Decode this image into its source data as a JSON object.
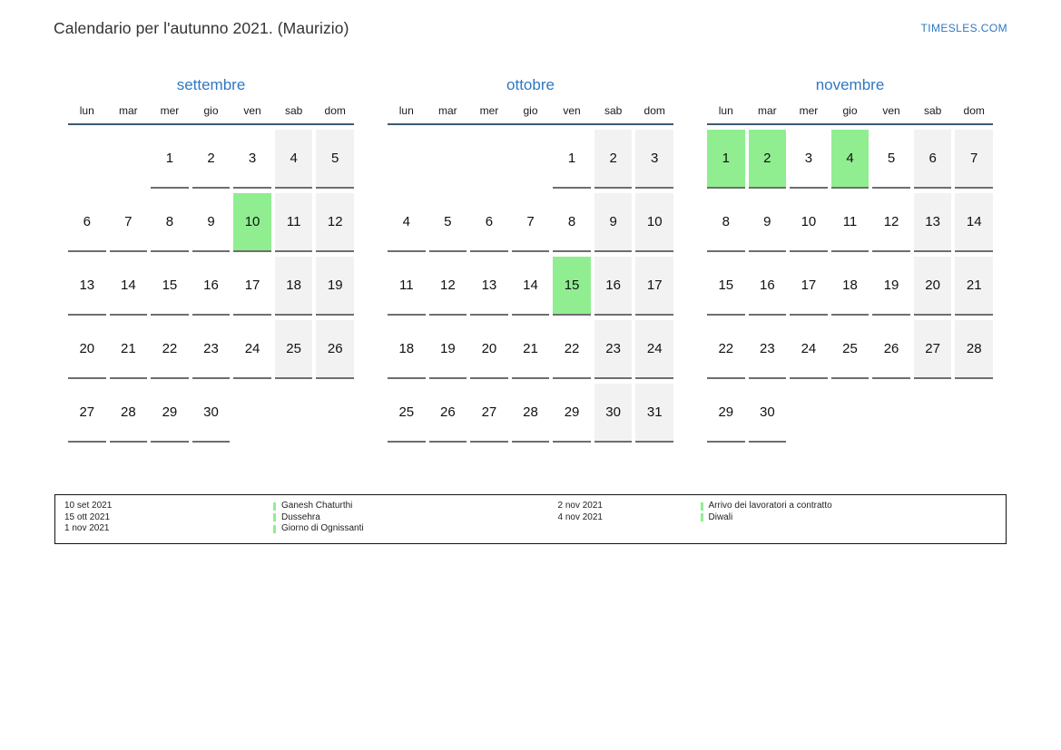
{
  "header": {
    "title": "Calendario per l'autunno 2021. (Maurizio)",
    "site_link": "TIMESLES.COM"
  },
  "colors": {
    "accent_blue": "#2e78c2",
    "header_line": "#3d5a78",
    "highlight_green": "#90ee90",
    "weekend_gray": "#f2f2f2"
  },
  "weekdays": [
    "lun",
    "mar",
    "mer",
    "gio",
    "ven",
    "sab",
    "dom"
  ],
  "months": [
    {
      "name": "settembre",
      "weeks": [
        [
          "",
          "",
          "1",
          "2",
          "3",
          "4",
          "5"
        ],
        [
          "6",
          "7",
          "8",
          "9",
          "10",
          "11",
          "12"
        ],
        [
          "13",
          "14",
          "15",
          "16",
          "17",
          "18",
          "19"
        ],
        [
          "20",
          "21",
          "22",
          "23",
          "24",
          "25",
          "26"
        ],
        [
          "27",
          "28",
          "29",
          "30",
          "",
          "",
          ""
        ]
      ],
      "highlighted": [
        "10"
      ]
    },
    {
      "name": "ottobre",
      "weeks": [
        [
          "",
          "",
          "",
          "",
          "1",
          "2",
          "3"
        ],
        [
          "4",
          "5",
          "6",
          "7",
          "8",
          "9",
          "10"
        ],
        [
          "11",
          "12",
          "13",
          "14",
          "15",
          "16",
          "17"
        ],
        [
          "18",
          "19",
          "20",
          "21",
          "22",
          "23",
          "24"
        ],
        [
          "25",
          "26",
          "27",
          "28",
          "29",
          "30",
          "31"
        ]
      ],
      "highlighted": [
        "15"
      ]
    },
    {
      "name": "novembre",
      "weeks": [
        [
          "1",
          "2",
          "3",
          "4",
          "5",
          "6",
          "7"
        ],
        [
          "8",
          "9",
          "10",
          "11",
          "12",
          "13",
          "14"
        ],
        [
          "15",
          "16",
          "17",
          "18",
          "19",
          "20",
          "21"
        ],
        [
          "22",
          "23",
          "24",
          "25",
          "26",
          "27",
          "28"
        ],
        [
          "29",
          "30",
          "",
          "",
          "",
          "",
          ""
        ]
      ],
      "highlighted": [
        "1",
        "2",
        "4"
      ]
    }
  ],
  "legend": {
    "groups": [
      {
        "entries": [
          {
            "date": "10 set 2021",
            "label": "Ganesh Chaturthi"
          },
          {
            "date": "15 ott 2021",
            "label": "Dussehra"
          },
          {
            "date": "1 nov 2021",
            "label": "Giorno di Ognissanti"
          }
        ]
      },
      {
        "entries": [
          {
            "date": "2 nov 2021",
            "label": "Arrivo dei lavoratori a contratto"
          },
          {
            "date": "4 nov 2021",
            "label": "Diwali"
          }
        ]
      }
    ]
  }
}
